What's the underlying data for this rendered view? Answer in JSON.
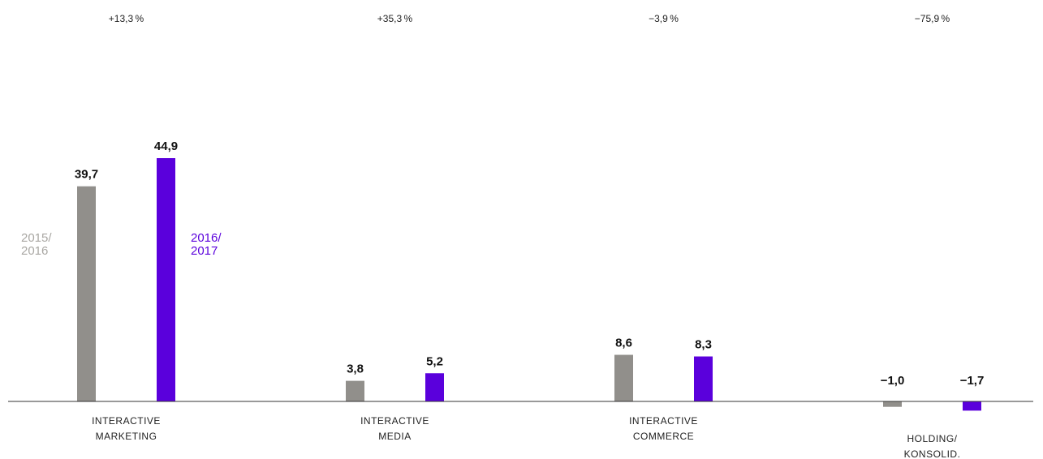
{
  "chart_data": {
    "type": "bar",
    "categories": [
      [
        "INTERACTIVE",
        "MARKETING"
      ],
      [
        "INTERACTIVE",
        "MEDIA"
      ],
      [
        "INTERACTIVE",
        "COMMERCE"
      ],
      [
        "HOLDING/",
        "KONSOLID."
      ]
    ],
    "series": [
      {
        "name": "2015/ 2016",
        "name_lines": [
          "2015/",
          "2016"
        ],
        "color": "#918f8b",
        "values": [
          39.7,
          3.8,
          8.6,
          -1.0
        ],
        "labels": [
          "39,7",
          "3,8",
          "8,6",
          "−1,0"
        ]
      },
      {
        "name": "2016/ 2017",
        "name_lines": [
          "2016/",
          "2017"
        ],
        "color": "#5a00dc",
        "values": [
          44.9,
          5.2,
          8.3,
          -1.7
        ],
        "labels": [
          "44,9",
          "5,2",
          "8,3",
          "−1,7"
        ]
      }
    ],
    "changes": [
      "+13,3 %",
      "+35,3 %",
      "−3,9 %",
      "−75,9 %"
    ],
    "legend_placement": "beside first category bars",
    "grid": false,
    "title": "",
    "xlabel": "",
    "ylabel": ""
  }
}
